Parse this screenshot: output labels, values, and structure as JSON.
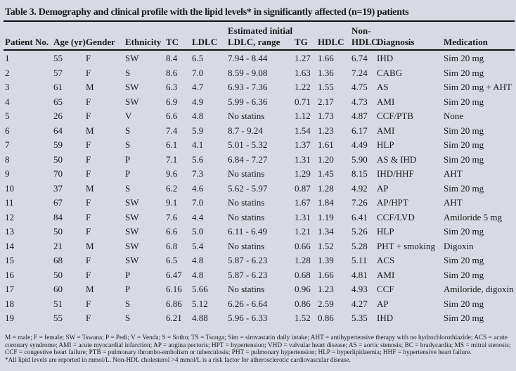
{
  "title": "Table 3. Demography and clinical profile with the lipid levels* in significantly affected (n=19) patients",
  "headers": {
    "patient_no": "Patient No.",
    "age": "Age (yr)",
    "gender": "Gender",
    "ethnicity": "Ethnicity",
    "tc": "TC",
    "ldlc": "LDLC",
    "est_top": "Estimated initial",
    "est_bottom": "LDLC, range",
    "tg": "TG",
    "hdlc": "HDLC",
    "nonhdlc_top": "Non-",
    "nonhdlc_bottom": "HDLC",
    "diagnosis": "Diagnosis",
    "medication": "Medication"
  },
  "rows": [
    [
      "1",
      "55",
      "F",
      "SW",
      "8.4",
      "6.5",
      "7.94 - 8.44",
      "1.27",
      "1.66",
      "6.74",
      "IHD",
      "Sim 20 mg"
    ],
    [
      "2",
      "57",
      "F",
      "S",
      "8.6",
      "7.0",
      "8.59 - 9.08",
      "1.63",
      "1.36",
      "7.24",
      "CABG",
      "Sim 20 mg"
    ],
    [
      "3",
      "61",
      "M",
      "SW",
      "6.3",
      "4.7",
      "6.93 - 7.36",
      "1.22",
      "1.55",
      "4.75",
      "AS",
      "Sim 20 mg + AHT"
    ],
    [
      "4",
      "65",
      "F",
      "SW",
      "6.9",
      "4.9",
      "5.99 - 6.36",
      "0.71",
      "2.17",
      "4.73",
      "AMI",
      "Sim 20 mg"
    ],
    [
      "5",
      "26",
      "F",
      "V",
      "6.6",
      "4.8",
      "No statins",
      "1.12",
      "1.73",
      "4.87",
      "CCF/PTB",
      "None"
    ],
    [
      "6",
      "64",
      "M",
      "S",
      "7.4",
      "5.9",
      "8.7 - 9.24",
      "1.54",
      "1.23",
      "6.17",
      "AMI",
      "Sim 20 mg"
    ],
    [
      "7",
      "59",
      "F",
      "S",
      "6.1",
      "4.1",
      "5.01 - 5.32",
      "1.37",
      "1.61",
      "4.49",
      "HLP",
      "Sim 20 mg"
    ],
    [
      "8",
      "50",
      "F",
      "P",
      "7.1",
      "5.6",
      "6.84 - 7.27",
      "1.31",
      "1.20",
      "5.90",
      "AS & IHD",
      "Sim 20 mg"
    ],
    [
      "9",
      "70",
      "F",
      "P",
      "9.6",
      "7.3",
      "No statins",
      "1.29",
      "1.45",
      "8.15",
      "IHD/HHF",
      "AHT"
    ],
    [
      "10",
      "37",
      "M",
      "S",
      "6.2",
      "4.6",
      "5.62 - 5.97",
      "0.87",
      "1.28",
      "4.92",
      "AP",
      "Sim 20 mg"
    ],
    [
      "11",
      "67",
      "F",
      "SW",
      "9.1",
      "7.0",
      "No statins",
      "1.67",
      "1.84",
      "7.26",
      "AP/HPT",
      "AHT"
    ],
    [
      "12",
      "84",
      "F",
      "SW",
      "7.6",
      "4.4",
      "No statins",
      "1.31",
      "1.19",
      "6.41",
      "CCF/LVD",
      "Amiloride 5 mg"
    ],
    [
      "13",
      "50",
      "F",
      "SW",
      "6.6",
      "5.0",
      "6.11 - 6.49",
      "1.21",
      "1.34",
      "5.26",
      "HLP",
      "Sim 20 mg"
    ],
    [
      "14",
      "21",
      "M",
      "SW",
      "6.8",
      "5.4",
      "No statins",
      "0.66",
      "1.52",
      "5.28",
      "PHT + smoking",
      "Digoxin"
    ],
    [
      "15",
      "68",
      "F",
      "SW",
      "6.5",
      "4.8",
      "5.87 - 6.23",
      "1.28",
      "1.39",
      "5.11",
      "ACS",
      "Sim 20 mg"
    ],
    [
      "16",
      "50",
      "F",
      "P",
      "6.47",
      "4.8",
      "5.87 - 6.23",
      "0.68",
      "1.66",
      "4.81",
      "AMI",
      "Sim 20 mg"
    ],
    [
      "17",
      "60",
      "M",
      "P",
      "6.16",
      "5.66",
      "No statins",
      "0.96",
      "1.23",
      "4.93",
      "CCF",
      "Amiloride, digoxin"
    ],
    [
      "18",
      "51",
      "F",
      "S",
      "6.86",
      "5.12",
      "6.26 - 6.64",
      "0.86",
      "2.59",
      "4.27",
      "AP",
      "Sim 20 mg"
    ],
    [
      "19",
      "55",
      "F",
      "S",
      "6.21",
      "4.88",
      "5.96 - 6.33",
      "1.52",
      "0.86",
      "5.35",
      "IHD",
      "Sim 20 mg"
    ]
  ],
  "footnotes": {
    "abbreviations": "M = male; F = female; SW = Tswana; P = Pedi; V = Venda; S = Sotho; TS = Tsonga; Sim = simvastatin daily intake; AHT = antihypertensive therapy with no hydrochlorothiazide; ACS = acute coronary syndrome; AMI = acute myocardial infarction; AP = angina pectoris; HPT = hypertension; VHD = valvular heart disease; AS = aortic stenosis; BC = bradycardia; MS = mitral stenosis; CCF = congestive heart failure; PTB = pulmonary thrombo-embolism or tuberculosis; PHT = pulmonary hypertension; HLP = hyperlipidaemia; HHF = hypertensive heart failure.",
    "lipid_note": "*All lipid levels are reported in mmol/L. Non-HDL cholesterol >4 mmol/L is a risk factor for atherosclerotic cardiovascular disease."
  }
}
